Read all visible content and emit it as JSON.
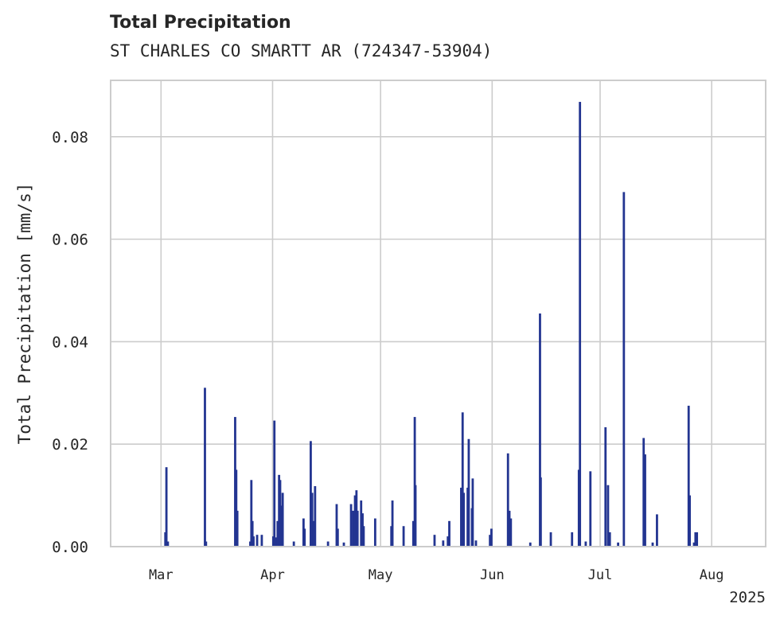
{
  "title": "Total Precipitation",
  "subtitle": "ST CHARLES CO SMARTT AR (724347-53904)",
  "chart_data": {
    "type": "bar",
    "ylabel": "Total Precipitation [mm/s]",
    "xlabel": "",
    "ylim": [
      0,
      0.091
    ],
    "yticks": [
      "0.00",
      "0.02",
      "0.04",
      "0.06",
      "0.08"
    ],
    "xticks": [
      "Mar",
      "Apr",
      "May",
      "Jun",
      "Jul",
      "Aug"
    ],
    "year_label": "2025",
    "grid": true,
    "bar_color": "#233591",
    "x_unit": "day of year",
    "x_range": [
      46,
      228
    ],
    "xtick_days": [
      60,
      91,
      121,
      152,
      182,
      213
    ],
    "points": [
      [
        61.2,
        0.0028
      ],
      [
        61.5,
        0.0155
      ],
      [
        61.9,
        0.001
      ],
      [
        72.2,
        0.031
      ],
      [
        72.5,
        0.001
      ],
      [
        80.6,
        0.0253
      ],
      [
        80.9,
        0.015
      ],
      [
        81.2,
        0.007
      ],
      [
        84.8,
        0.001
      ],
      [
        85.1,
        0.013
      ],
      [
        85.4,
        0.005
      ],
      [
        85.7,
        0.002
      ],
      [
        86.7,
        0.0023
      ],
      [
        88.0,
        0.0023
      ],
      [
        91.2,
        0.002
      ],
      [
        91.5,
        0.0246
      ],
      [
        92.0,
        0.0018
      ],
      [
        92.4,
        0.005
      ],
      [
        92.8,
        0.014
      ],
      [
        93.1,
        0.013
      ],
      [
        93.4,
        0.008
      ],
      [
        93.8,
        0.0105
      ],
      [
        96.9,
        0.001
      ],
      [
        99.6,
        0.0055
      ],
      [
        99.9,
        0.0035
      ],
      [
        101.6,
        0.0206
      ],
      [
        102.0,
        0.0105
      ],
      [
        102.4,
        0.005
      ],
      [
        102.8,
        0.0118
      ],
      [
        106.4,
        0.001
      ],
      [
        108.8,
        0.0083
      ],
      [
        109.1,
        0.0035
      ],
      [
        110.8,
        0.0008
      ],
      [
        112.8,
        0.0083
      ],
      [
        113.4,
        0.007
      ],
      [
        113.9,
        0.01
      ],
      [
        114.3,
        0.011
      ],
      [
        114.6,
        0.007
      ],
      [
        115.6,
        0.009
      ],
      [
        116.0,
        0.0065
      ],
      [
        116.3,
        0.004
      ],
      [
        119.5,
        0.0055
      ],
      [
        124.0,
        0.004
      ],
      [
        124.3,
        0.009
      ],
      [
        127.4,
        0.004
      ],
      [
        130.1,
        0.005
      ],
      [
        130.5,
        0.0253
      ],
      [
        130.7,
        0.012
      ],
      [
        136.0,
        0.0023
      ],
      [
        138.4,
        0.0012
      ],
      [
        139.7,
        0.002
      ],
      [
        140.1,
        0.005
      ],
      [
        143.4,
        0.0115
      ],
      [
        143.8,
        0.0262
      ],
      [
        144.1,
        0.0105
      ],
      [
        145.2,
        0.0115
      ],
      [
        145.5,
        0.021
      ],
      [
        146.4,
        0.0075
      ],
      [
        146.6,
        0.0133
      ],
      [
        147.5,
        0.0012
      ],
      [
        151.4,
        0.0023
      ],
      [
        151.8,
        0.0035
      ],
      [
        156.4,
        0.0182
      ],
      [
        156.8,
        0.007
      ],
      [
        157.2,
        0.0055
      ],
      [
        162.6,
        0.0008
      ],
      [
        165.3,
        0.0455
      ],
      [
        165.5,
        0.0135
      ],
      [
        168.3,
        0.0028
      ],
      [
        174.2,
        0.0028
      ],
      [
        176.1,
        0.015
      ],
      [
        176.4,
        0.0868
      ],
      [
        178.0,
        0.001
      ],
      [
        179.3,
        0.0147
      ],
      [
        183.5,
        0.0233
      ],
      [
        184.2,
        0.012
      ],
      [
        184.7,
        0.0028
      ],
      [
        187.0,
        0.0008
      ],
      [
        188.6,
        0.0692
      ],
      [
        194.1,
        0.0212
      ],
      [
        194.5,
        0.018
      ],
      [
        196.6,
        0.0008
      ],
      [
        197.8,
        0.0063
      ],
      [
        206.6,
        0.0275
      ],
      [
        206.9,
        0.01
      ],
      [
        208.1,
        0.0008
      ],
      [
        208.5,
        0.0028
      ],
      [
        208.9,
        0.0028
      ]
    ]
  }
}
